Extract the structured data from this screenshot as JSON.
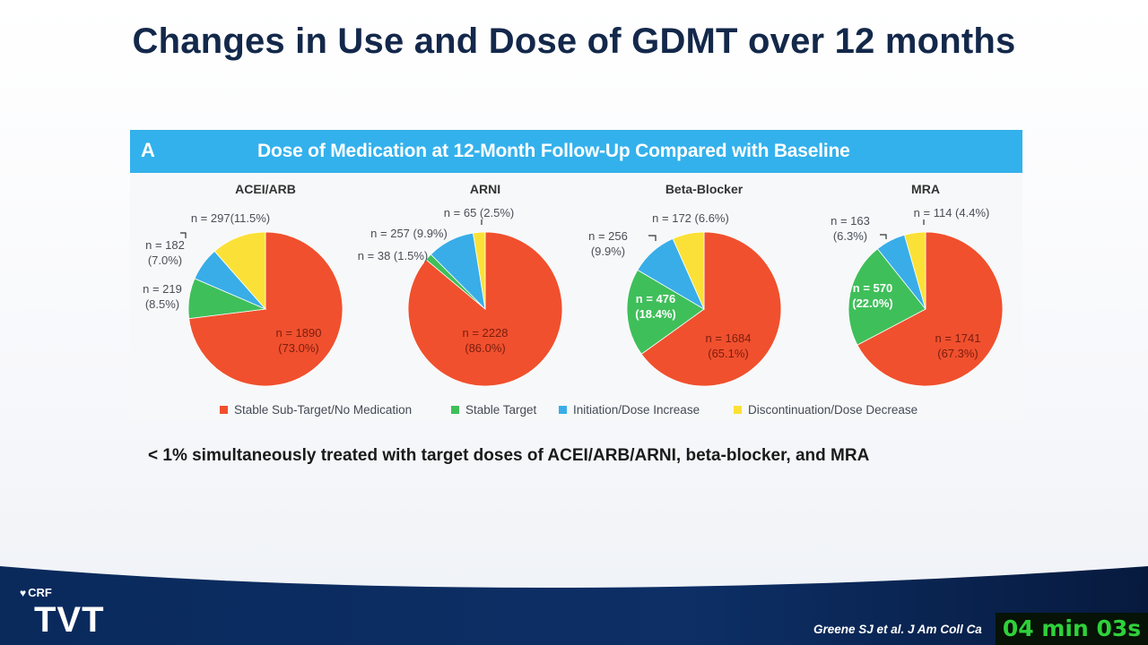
{
  "slide": {
    "title": "Changes in Use and Dose of GDMT over 12 months",
    "note": "< 1% simultaneously treated with target doses of ACEI/ARB/ARNI, beta-blocker, and MRA",
    "logo_small": "CRF",
    "logo_large": "TVT",
    "citation": "Greene SJ et al. J Am Coll Ca",
    "timer": "04 min 03s"
  },
  "figure": {
    "letter": "A",
    "title": "Dose of Medication at 12-Month Follow-Up Compared with Baseline"
  },
  "colors": {
    "sub_target": "#f0502e",
    "stable_target": "#3fbf5a",
    "increase": "#39ade8",
    "decrease": "#fbe137",
    "header": "#33b1ec",
    "title": "#13284a"
  },
  "chart_data": {
    "type": "pie",
    "legend": [
      "Stable Sub-Target/No Medication",
      "Stable Target",
      "Initiation/Dose Increase",
      "Discontinuation/Dose Decrease"
    ],
    "legend_position": "bottom",
    "charts": [
      {
        "title": "ACEI/ARB",
        "slices": [
          {
            "category": "Stable Sub-Target/No Medication",
            "n": 1890,
            "percent": 73.0,
            "label": "n = 1890\n(73.0%)"
          },
          {
            "category": "Stable Target",
            "n": 219,
            "percent": 8.5,
            "label": "n = 219\n(8.5%)"
          },
          {
            "category": "Initiation/Dose Increase",
            "n": 182,
            "percent": 7.0,
            "label": "n = 182\n(7.0%)"
          },
          {
            "category": "Discontinuation/Dose Decrease",
            "n": 297,
            "percent": 11.5,
            "label": "n = 297(11.5%)"
          }
        ]
      },
      {
        "title": "ARNI",
        "slices": [
          {
            "category": "Stable Sub-Target/No Medication",
            "n": 2228,
            "percent": 86.0,
            "label": "n = 2228\n(86.0%)"
          },
          {
            "category": "Stable Target",
            "n": 38,
            "percent": 1.5,
            "label": "n = 38 (1.5%)"
          },
          {
            "category": "Initiation/Dose Increase",
            "n": 257,
            "percent": 9.9,
            "label": "n = 257 (9.9%)"
          },
          {
            "category": "Discontinuation/Dose Decrease",
            "n": 65,
            "percent": 2.5,
            "label": "n = 65 (2.5%)"
          }
        ]
      },
      {
        "title": "Beta-Blocker",
        "slices": [
          {
            "category": "Stable Sub-Target/No Medication",
            "n": 1684,
            "percent": 65.1,
            "label": "n = 1684\n(65.1%)"
          },
          {
            "category": "Stable Target",
            "n": 476,
            "percent": 18.4,
            "label": "n = 476\n(18.4%)"
          },
          {
            "category": "Initiation/Dose Increase",
            "n": 256,
            "percent": 9.9,
            "label": "n = 256\n(9.9%)"
          },
          {
            "category": "Discontinuation/Dose Decrease",
            "n": 172,
            "percent": 6.6,
            "label": "n = 172 (6.6%)"
          }
        ]
      },
      {
        "title": "MRA",
        "slices": [
          {
            "category": "Stable Sub-Target/No Medication",
            "n": 1741,
            "percent": 67.3,
            "label": "n = 1741\n(67.3%)"
          },
          {
            "category": "Stable Target",
            "n": 570,
            "percent": 22.0,
            "label": "n = 570\n(22.0%)"
          },
          {
            "category": "Initiation/Dose Increase",
            "n": 163,
            "percent": 6.3,
            "label": "n = 163\n(6.3%)"
          },
          {
            "category": "Discontinuation/Dose Decrease",
            "n": 114,
            "percent": 4.4,
            "label": "n = 114 (4.4%)"
          }
        ]
      }
    ]
  }
}
